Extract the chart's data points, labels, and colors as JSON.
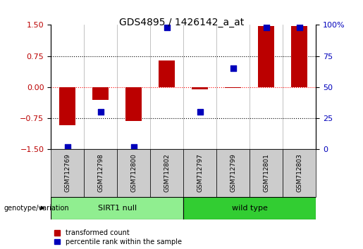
{
  "title": "GDS4895 / 1426142_a_at",
  "samples": [
    "GSM712769",
    "GSM712798",
    "GSM712800",
    "GSM712802",
    "GSM712797",
    "GSM712799",
    "GSM712801",
    "GSM712803"
  ],
  "red_values": [
    -0.92,
    -0.3,
    -0.82,
    0.65,
    -0.05,
    -0.02,
    1.48,
    1.48
  ],
  "blue_percentiles": [
    2,
    30,
    2,
    98,
    30,
    65,
    98,
    98
  ],
  "groups": [
    {
      "label": "SIRT1 null",
      "start": 0,
      "end": 4,
      "color": "#90EE90"
    },
    {
      "label": "wild type",
      "start": 4,
      "end": 8,
      "color": "#32CD32"
    }
  ],
  "ylim": [
    -1.5,
    1.5
  ],
  "yticks_left": [
    -1.5,
    -0.75,
    0,
    0.75,
    1.5
  ],
  "yticks_right": [
    0,
    25,
    50,
    75,
    100
  ],
  "red_color": "#BB0000",
  "blue_color": "#0000BB",
  "bar_width": 0.5,
  "dot_size": 40,
  "legend_red": "transformed count",
  "legend_blue": "percentile rank within the sample",
  "group_label": "genotype/variation",
  "background_color": "#ffffff",
  "sample_box_color": "#cccccc",
  "title_fontsize": 10,
  "tick_fontsize": 8,
  "label_fontsize": 8
}
